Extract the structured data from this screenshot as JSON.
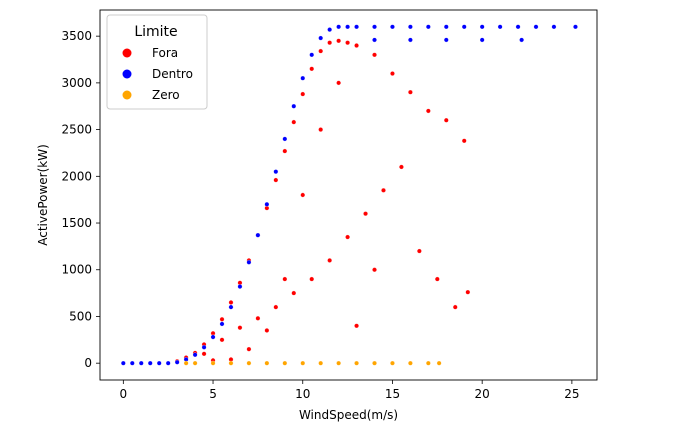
{
  "chart_data": {
    "type": "scatter",
    "title": "",
    "xlabel": "WindSpeed(m/s)",
    "ylabel": "ActivePower(kW)",
    "xlim": [
      -1.3,
      26.4
    ],
    "ylim": [
      -180,
      3780
    ],
    "xticks": [
      0,
      5,
      10,
      15,
      20,
      25
    ],
    "yticks": [
      0,
      500,
      1000,
      1500,
      2000,
      2500,
      3000,
      3500
    ],
    "grid": false,
    "legend": {
      "title": "Limite",
      "placement": "top-left",
      "entries": [
        {
          "label": "Fora",
          "color": "#ff0000"
        },
        {
          "label": "Dentro",
          "color": "#0000ff"
        },
        {
          "label": "Zero",
          "color": "#ffa500"
        }
      ]
    },
    "series": [
      {
        "name": "Fora",
        "color": "#ff0000",
        "x": [
          3.0,
          3.5,
          4.0,
          4.5,
          5.0,
          5.5,
          6.0,
          6.5,
          7.0,
          7.5,
          8.0,
          8.5,
          9.0,
          9.5,
          10.0,
          10.5,
          11.0,
          11.5,
          12.0,
          12.5,
          13.0,
          14.0,
          15.0,
          16.0,
          17.0,
          18.0,
          19.0,
          4.5,
          5.5,
          6.5,
          7.5,
          8.5,
          9.5,
          10.5,
          11.5,
          12.5,
          13.5,
          14.5,
          15.5,
          16.5,
          17.5,
          18.5,
          19.2,
          5.0,
          6.0,
          7.0,
          8.0,
          9.0,
          10.0,
          11.0,
          12.0,
          13.0,
          14.0
        ],
        "y": [
          20,
          60,
          110,
          200,
          320,
          470,
          650,
          860,
          1100,
          1370,
          1660,
          1960,
          2270,
          2580,
          2880,
          3150,
          3340,
          3430,
          3450,
          3430,
          3400,
          3300,
          3100,
          2900,
          2700,
          2600,
          2380,
          100,
          250,
          380,
          480,
          600,
          750,
          900,
          1100,
          1350,
          1600,
          1850,
          2100,
          1200,
          900,
          600,
          760,
          30,
          40,
          150,
          350,
          900,
          1800,
          2500,
          3000,
          400,
          1000
        ]
      },
      {
        "name": "Dentro",
        "color": "#0000ff",
        "x": [
          0.0,
          0.5,
          1.0,
          1.5,
          2.0,
          2.5,
          3.0,
          3.5,
          4.0,
          4.5,
          5.0,
          5.5,
          6.0,
          6.5,
          7.0,
          7.5,
          8.0,
          8.5,
          9.0,
          9.5,
          10.0,
          10.5,
          11.0,
          11.5,
          12.0,
          12.5,
          13.0,
          14.0,
          15.0,
          16.0,
          17.0,
          18.0,
          19.0,
          20.0,
          21.0,
          22.0,
          23.0,
          24.0,
          25.2,
          14.0,
          16.0,
          18.0,
          20.0,
          22.2
        ],
        "y": [
          0,
          0,
          0,
          0,
          0,
          0,
          10,
          40,
          90,
          170,
          280,
          420,
          600,
          820,
          1080,
          1370,
          1700,
          2050,
          2400,
          2750,
          3050,
          3300,
          3480,
          3570,
          3600,
          3600,
          3600,
          3600,
          3600,
          3600,
          3600,
          3600,
          3600,
          3600,
          3600,
          3600,
          3600,
          3600,
          3600,
          3460,
          3460,
          3460,
          3460,
          3460
        ]
      },
      {
        "name": "Zero",
        "color": "#ffa500",
        "x": [
          3.5,
          4.0,
          5.0,
          6.0,
          7.0,
          8.0,
          9.0,
          10.0,
          11.0,
          12.0,
          13.0,
          14.0,
          15.0,
          16.0,
          17.0,
          17.6
        ],
        "y": [
          0,
          0,
          0,
          0,
          0,
          0,
          0,
          0,
          0,
          0,
          0,
          0,
          0,
          0,
          0,
          0
        ]
      }
    ]
  }
}
